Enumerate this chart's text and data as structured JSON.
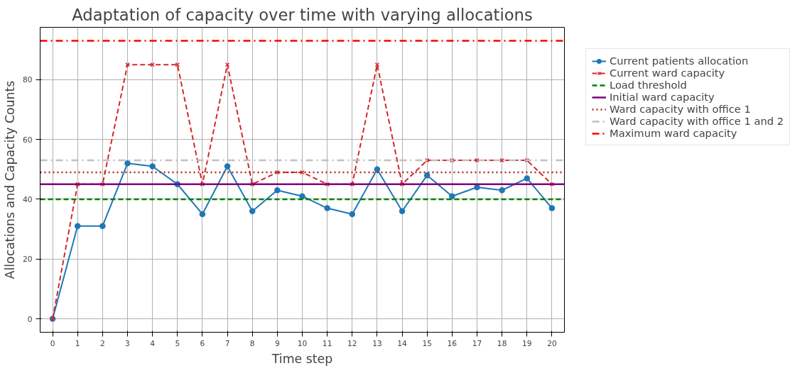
{
  "chart_data": {
    "type": "line",
    "title": "Adaptation of capacity over time with varying allocations",
    "xlabel": "Time step",
    "ylabel": "Allocations and Capacity Counts",
    "x": [
      0,
      1,
      2,
      3,
      4,
      5,
      6,
      7,
      8,
      9,
      10,
      11,
      12,
      13,
      14,
      15,
      16,
      17,
      18,
      19,
      20
    ],
    "series": [
      {
        "name": "Current patients allocation",
        "color": "#1f77b4",
        "marker": "circle",
        "line_style": "solid",
        "values": [
          0,
          31,
          31,
          52,
          51,
          45,
          35,
          51,
          36,
          43,
          41,
          37,
          35,
          50,
          36,
          48,
          41,
          44,
          43,
          47,
          37
        ]
      },
      {
        "name": "Current ward capacity",
        "color": "#d62728",
        "marker": "cross",
        "line_style": "dashed",
        "values": [
          0,
          45,
          45,
          85,
          85,
          85,
          45,
          85,
          45,
          49,
          49,
          45,
          45,
          85,
          45,
          53,
          53,
          53,
          53,
          53,
          45
        ]
      }
    ],
    "ref_lines": [
      {
        "axis": "y",
        "value": 40,
        "label": "Load threshold",
        "color": "#008000",
        "line_style": "dashed"
      },
      {
        "axis": "y",
        "value": 45,
        "label": "Initial ward capacity",
        "color": "#800080",
        "line_style": "solid"
      },
      {
        "axis": "y",
        "value": 49,
        "label": "Ward capacity with office 1",
        "color": "#b22222",
        "line_style": "dotted"
      },
      {
        "axis": "y",
        "value": 53,
        "label": "Ward capacity with office 1 and 2",
        "color": "#c0c0c0",
        "line_style": "dashdot"
      },
      {
        "axis": "y",
        "value": 93,
        "label": "Maximum ward capacity",
        "color": "#ff0000",
        "line_style": "dashdot"
      }
    ],
    "xlim": [
      -0.5,
      20.5
    ],
    "ylim": [
      -4.5,
      97.5
    ],
    "xticks": [
      0,
      1,
      2,
      3,
      4,
      5,
      6,
      7,
      8,
      9,
      10,
      11,
      12,
      13,
      14,
      15,
      16,
      17,
      18,
      19,
      20
    ],
    "yticks": [
      0,
      20,
      40,
      60,
      80
    ],
    "grid": true,
    "legend": "top right"
  }
}
